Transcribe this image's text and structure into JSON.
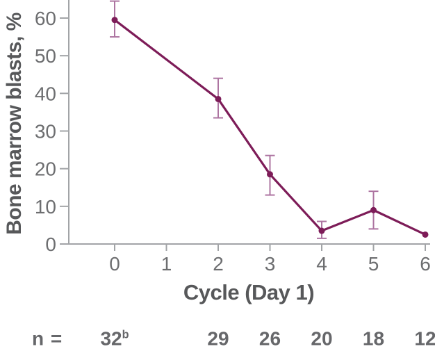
{
  "chart_data": {
    "type": "line",
    "title": "",
    "xlabel": "Cycle (Day 1)",
    "ylabel": "Bone marrow blasts, %",
    "x_ticks": [
      "0",
      "1",
      "2",
      "3",
      "4",
      "5",
      "6"
    ],
    "y_ticks": [
      "0",
      "10",
      "20",
      "30",
      "40",
      "50",
      "60"
    ],
    "xlim": [
      -0.9,
      6.1
    ],
    "ylim": [
      0,
      65
    ],
    "grid": false,
    "legend_position": "none",
    "series": [
      {
        "name": "Bone marrow blasts, %",
        "line_color": "#7d1c58",
        "marker_color": "#7d1c58",
        "error_bar_color": "#ad74a1",
        "points": [
          {
            "x": 0,
            "y": 59.5,
            "ci_low": 55,
            "ci_high": 64.5
          },
          {
            "x": 2,
            "y": 38.5,
            "ci_low": 33.5,
            "ci_high": 44
          },
          {
            "x": 3,
            "y": 18.5,
            "ci_low": 13,
            "ci_high": 23.5
          },
          {
            "x": 4,
            "y": 3.5,
            "ci_low": 1.5,
            "ci_high": 6
          },
          {
            "x": 5,
            "y": 9,
            "ci_low": 4,
            "ci_high": 14
          },
          {
            "x": 6,
            "y": 2.5,
            "ci_low": null,
            "ci_high": null
          }
        ]
      }
    ],
    "n_row": {
      "prefix": "n =",
      "entries": [
        {
          "x": 0,
          "value": "32",
          "superscript": "b"
        },
        {
          "x": 2,
          "value": "29",
          "superscript": ""
        },
        {
          "x": 3,
          "value": "26",
          "superscript": ""
        },
        {
          "x": 4,
          "value": "20",
          "superscript": ""
        },
        {
          "x": 5,
          "value": "18",
          "superscript": ""
        },
        {
          "x": 6,
          "value": "12",
          "superscript": ""
        }
      ]
    },
    "colors": {
      "axis": "#a2a4a7",
      "tick_text": "#6d6e70",
      "label_text": "#57585a"
    }
  }
}
